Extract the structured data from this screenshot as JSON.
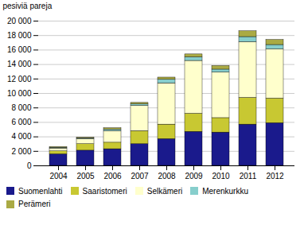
{
  "chart_data": {
    "type": "bar",
    "stacked": true,
    "categories": [
      "2004",
      "2005",
      "2006",
      "2007",
      "2008",
      "2009",
      "2010",
      "2011",
      "2012"
    ],
    "series": [
      {
        "name": "Suomenlahti",
        "color": "#1a1a8c",
        "values": [
          1600,
          2100,
          2300,
          3000,
          3700,
          4700,
          4600,
          5700,
          5900
        ]
      },
      {
        "name": "Saaristomeri",
        "color": "#c8c832",
        "values": [
          400,
          900,
          900,
          1800,
          2000,
          2500,
          2000,
          3700,
          3400
        ]
      },
      {
        "name": "Selkämeri",
        "color": "#ffffcc",
        "values": [
          400,
          700,
          1600,
          3500,
          5700,
          7300,
          6300,
          7700,
          6800
        ]
      },
      {
        "name": "Merenkurkku",
        "color": "#87cecc",
        "values": [
          100,
          100,
          200,
          200,
          500,
          500,
          400,
          700,
          600
        ]
      },
      {
        "name": "Perämeri",
        "color": "#aaaa44",
        "values": [
          100,
          100,
          200,
          200,
          300,
          400,
          500,
          800,
          700
        ]
      }
    ],
    "ylabel": "pesiviä pareja",
    "ylim": [
      0,
      20000
    ],
    "yticks": [
      0,
      {
        "value": 2000,
        "label": "2 000"
      },
      {
        "value": 4000,
        "label": "4 000"
      },
      {
        "value": 6000,
        "label": "6 000"
      },
      {
        "value": 8000,
        "label": "8 000"
      },
      {
        "value": 10000,
        "label": "10 000"
      },
      {
        "value": 12000,
        "label": "12 000"
      },
      {
        "value": 14000,
        "label": "14 000"
      },
      {
        "value": 16000,
        "label": "16 000"
      },
      {
        "value": 18000,
        "label": "18 000"
      },
      {
        "value": 20000,
        "label": "20 000"
      }
    ],
    "grid": true,
    "legend": "bottom"
  }
}
